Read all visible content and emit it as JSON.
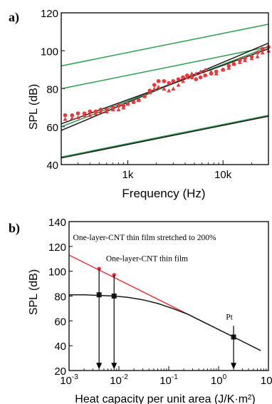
{
  "chart_data": [
    {
      "panel_label": "a)",
      "type": "scatter",
      "xscale": "log",
      "xlim": [
        200,
        30000
      ],
      "ylim": [
        40,
        120
      ],
      "ylabel": "SPL (dB)",
      "xlabel": "Frequency (Hz)",
      "yticks": [
        "40",
        "60",
        "80",
        "100",
        "120"
      ],
      "xticks": [
        {
          "value": 1000,
          "label": "1k"
        },
        {
          "value": 10000,
          "label": "10k"
        }
      ],
      "series": [
        {
          "kind": "line",
          "color": "#2e9e4f",
          "x": [
            200,
            30000
          ],
          "y": [
            92,
            114
          ]
        },
        {
          "kind": "line",
          "color": "#2e9e4f",
          "x": [
            200,
            30000
          ],
          "y": [
            80,
            102
          ]
        },
        {
          "kind": "line",
          "color": "#2e9e4f",
          "x": [
            200,
            30000
          ],
          "y": [
            44,
            66
          ]
        },
        {
          "kind": "line",
          "color": "#1a1a1a",
          "x": [
            200,
            30000
          ],
          "y": [
            43.5,
            65.5
          ]
        },
        {
          "kind": "line",
          "color": "#1a1a1a",
          "x": [
            200,
            30000
          ],
          "y": [
            58,
            104
          ]
        },
        {
          "kind": "line",
          "color": "#2e9e4f",
          "x": [
            200,
            30000
          ],
          "y": [
            60,
            102
          ]
        },
        {
          "kind": "line",
          "color": "#1a1a1a",
          "x": [
            200,
            30000
          ],
          "y": [
            61.5,
            101
          ]
        },
        {
          "kind": "scatter",
          "color": "#e8383d",
          "marker": "triangle",
          "x": [
            220,
            260,
            300,
            350,
            400,
            460,
            520,
            600,
            700,
            800,
            900,
            1000,
            1150,
            1300,
            1500,
            1700,
            1900,
            2100,
            2400,
            2700,
            3000,
            3400,
            3800,
            4200,
            4700,
            5200,
            5800,
            6500,
            7500,
            8500,
            10000,
            11500,
            13000,
            15000,
            17000,
            20000,
            23000,
            26000,
            30000
          ],
          "y": [
            64,
            64.5,
            65,
            66,
            66,
            67,
            68,
            68,
            69,
            69,
            70,
            72,
            73,
            74,
            76,
            78,
            80,
            81,
            80,
            79,
            80,
            82,
            84,
            86,
            88,
            88,
            89,
            90,
            89,
            88,
            90,
            91,
            93,
            94,
            95,
            96,
            97,
            99,
            100
          ]
        },
        {
          "kind": "scatter",
          "color": "#e8383d",
          "marker": "circle",
          "x": [
            220,
            260,
            300,
            350,
            400,
            460,
            520,
            600,
            700,
            800,
            900,
            1000,
            1150,
            1300,
            1500,
            1700,
            1900,
            2100,
            2400,
            2700,
            3000,
            3400,
            3800,
            4200,
            4700,
            5200,
            5800,
            6500,
            7500,
            8500,
            10000,
            11500,
            13000,
            15000,
            17000,
            20000,
            23000,
            26000,
            30000
          ],
          "y": [
            66,
            66,
            67,
            67,
            68,
            68,
            69,
            69,
            70,
            71,
            71,
            72,
            73,
            74,
            76,
            79,
            82,
            84,
            84,
            83,
            84,
            85,
            86,
            87,
            86,
            85,
            86,
            87,
            88,
            89,
            90,
            92,
            93,
            95,
            96,
            97,
            99,
            101,
            102
          ]
        }
      ]
    },
    {
      "panel_label": "b)",
      "type": "line",
      "xscale": "log",
      "xlim": [
        0.001,
        10
      ],
      "ylim": [
        20,
        140
      ],
      "ylabel": "SPL (dB)",
      "xlabel": "Heat capacity per unit area (J/K·m²)",
      "yticks": [
        "20",
        "40",
        "60",
        "80",
        "100",
        "120",
        "140"
      ],
      "xticks": [
        {
          "value": 0.001,
          "label": "10",
          "exp": "-3"
        },
        {
          "value": 0.01,
          "label": "10",
          "exp": "-2"
        },
        {
          "value": 0.1,
          "label": "10",
          "exp": "-1"
        },
        {
          "value": 1,
          "label": "10",
          "exp": "0"
        },
        {
          "value": 10,
          "label": "10",
          "exp": "1"
        }
      ],
      "series": [
        {
          "kind": "line",
          "color": "#e8383d",
          "x": [
            0.001,
            2
          ],
          "y": [
            113,
            47
          ]
        },
        {
          "kind": "line",
          "color": "#1a1a1a",
          "x": [
            0.001,
            0.002,
            0.004,
            0.008,
            0.015,
            0.03,
            0.06,
            0.12,
            0.25,
            0.5,
            1,
            2,
            4,
            7
          ],
          "y": [
            81,
            81,
            80.5,
            80,
            79,
            77,
            74,
            70,
            65,
            59,
            53,
            47,
            41,
            36
          ]
        },
        {
          "kind": "scatter",
          "color": "#e8383d",
          "marker": "circle",
          "x": [
            0.004,
            0.008
          ],
          "y": [
            102,
            97
          ]
        },
        {
          "kind": "scatter",
          "color": "#1a1a1a",
          "marker": "square",
          "x": [
            0.004,
            0.008,
            2
          ],
          "y": [
            81,
            80,
            47
          ]
        }
      ],
      "arrows": [
        {
          "x": 0.004,
          "y_from": 102,
          "y_to": 21
        },
        {
          "x": 0.008,
          "y_from": 97,
          "y_to": 21
        },
        {
          "x": 2,
          "y_from": 56,
          "y_to": 21
        }
      ],
      "annotations": [
        {
          "text": "One-layer-CNT thin film stretched to 200%",
          "x": 0.0012,
          "y": 125
        },
        {
          "text": "One-layer-CNT thin film",
          "x": 0.0055,
          "y": 108
        },
        {
          "text": "Pt",
          "x": 1.4,
          "y": 61
        }
      ]
    }
  ]
}
